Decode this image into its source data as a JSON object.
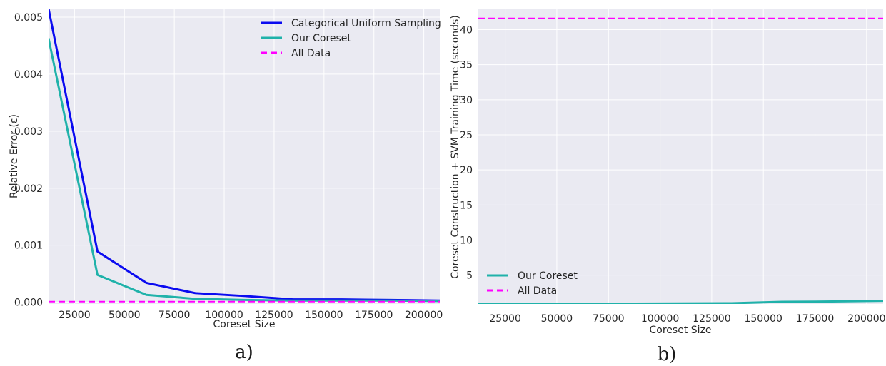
{
  "chart_data": [
    {
      "type": "line",
      "panel_label": "a)",
      "title": "",
      "xlabel": "Coreset Size",
      "ylabel": "Relative Error (ε)",
      "xlim": [
        12000,
        208000
      ],
      "ylim": [
        -3e-05,
        0.00515
      ],
      "xticks": [
        25000,
        50000,
        75000,
        100000,
        125000,
        150000,
        175000,
        200000
      ],
      "yticks": [
        0.0,
        0.001,
        0.002,
        0.003,
        0.004,
        0.005
      ],
      "ytick_labels": [
        "0.000",
        "0.001",
        "0.002",
        "0.003",
        "0.004",
        "0.005"
      ],
      "grid": true,
      "legend_position": "top-right",
      "series": [
        {
          "name": "Categorical Uniform Sampling",
          "color": "#0b0bf0",
          "style": "solid",
          "x": [
            12000,
            36500,
            61000,
            85500,
            110000,
            134500,
            159000,
            183500,
            208000
          ],
          "y": [
            0.00515,
            0.00089,
            0.00034,
            0.00016,
            0.00011,
            5e-05,
            5e-05,
            4e-05,
            3e-05
          ]
        },
        {
          "name": "Our Coreset",
          "color": "#20b2aa",
          "style": "solid",
          "x": [
            12000,
            36500,
            61000,
            85500,
            110000,
            134500,
            159000,
            183500,
            208000
          ],
          "y": [
            0.00463,
            0.00048,
            0.00013,
            6e-05,
            4e-05,
            3e-05,
            3e-05,
            3e-05,
            2e-05
          ]
        },
        {
          "name": "All Data",
          "color": "#ff00ff",
          "style": "dashed",
          "x": [
            12000,
            208000
          ],
          "y": [
            1e-05,
            1e-05
          ]
        }
      ]
    },
    {
      "type": "line",
      "panel_label": "b)",
      "title": "",
      "xlabel": "Coreset Size",
      "ylabel": "Coreset Construction + SVM Training Time (seconds)",
      "xlim": [
        12000,
        208000
      ],
      "ylim": [
        0.9,
        43
      ],
      "xticks": [
        25000,
        50000,
        75000,
        100000,
        125000,
        150000,
        175000,
        200000
      ],
      "yticks": [
        5,
        10,
        15,
        20,
        25,
        30,
        35,
        40
      ],
      "ytick_labels": [
        "5",
        "10",
        "15",
        "20",
        "25",
        "30",
        "35",
        "40"
      ],
      "grid": true,
      "legend_position": "bottom-left",
      "series": [
        {
          "name": "Our Coreset",
          "color": "#20b2aa",
          "style": "solid",
          "x": [
            12000,
            36500,
            61000,
            85500,
            110000,
            134500,
            159000,
            183500,
            208000
          ],
          "y": [
            0.9,
            0.95,
            0.95,
            0.95,
            0.97,
            1.0,
            1.2,
            1.25,
            1.35
          ]
        },
        {
          "name": "All Data",
          "color": "#ff00ff",
          "style": "dashed",
          "x": [
            12000,
            208000
          ],
          "y": [
            41.6,
            41.6
          ]
        }
      ]
    }
  ]
}
